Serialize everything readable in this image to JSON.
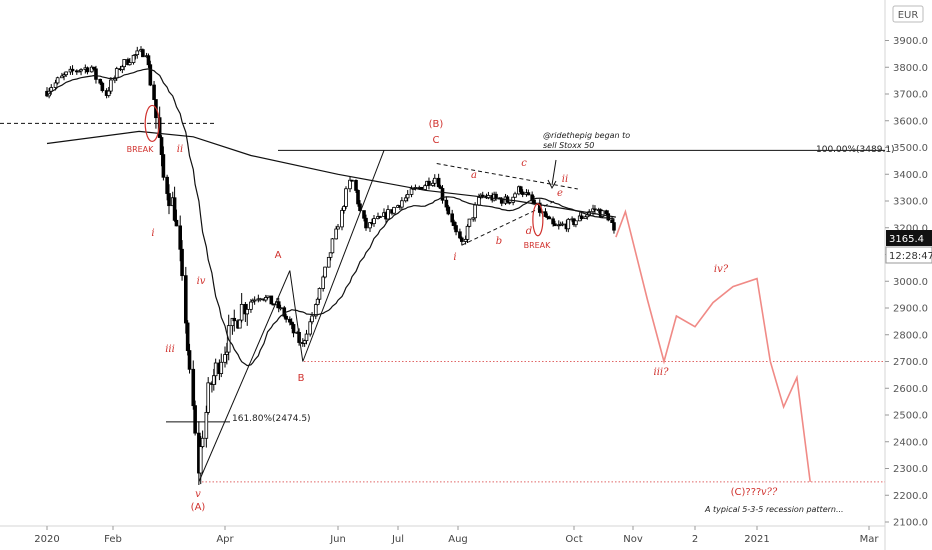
{
  "chart_data": {
    "type": "candlestick",
    "currency": "EUR",
    "x_ticks": [
      "2020",
      "Feb",
      "Apr",
      "Jun",
      "Jul",
      "Aug",
      "Oct",
      "Nov",
      "2",
      "2021",
      "Mar"
    ],
    "y_ticks": [
      "3900.0",
      "3800.0",
      "3700.0",
      "3600.0",
      "3500.0",
      "3400.0",
      "3300.0",
      "3200.0",
      "3100.0",
      "3000.0",
      "2900.0",
      "2800.0",
      "2700.0",
      "2600.0",
      "2500.0",
      "2400.0",
      "2300.0",
      "2200.0",
      "2100.0"
    ],
    "ylim": [
      2070,
      4000
    ],
    "last_price": "3165.4",
    "countdown": "12:28:47",
    "fib_upper_label": "100.00%(3489.1)",
    "fib_upper_value": 3489.1,
    "fib_lower_label": "161.80%(2474.5)",
    "fib_lower_value": 2474.5,
    "support_level": 2700,
    "target_level": 2250,
    "breakdown_level": 3590,
    "price_path": [
      [
        "2020-01-01",
        3710
      ],
      [
        "2020-01-08",
        3760
      ],
      [
        "2020-01-15",
        3790
      ],
      [
        "2020-01-22",
        3800
      ],
      [
        "2020-01-29",
        3700
      ],
      [
        "2020-02-05",
        3800
      ],
      [
        "2020-02-12",
        3840
      ],
      [
        "2020-02-19",
        3860
      ],
      [
        "2020-02-24",
        3650
      ],
      [
        "2020-02-28",
        3400
      ],
      [
        "2020-03-06",
        3250
      ],
      [
        "2020-03-10",
        2950
      ],
      [
        "2020-03-13",
        2700
      ],
      [
        "2020-03-18",
        2300
      ],
      [
        "2020-03-24",
        2600
      ],
      [
        "2020-04-01",
        2750
      ],
      [
        "2020-04-10",
        2900
      ],
      [
        "2020-04-20",
        2950
      ],
      [
        "2020-05-01",
        2900
      ],
      [
        "2020-05-13",
        2760
      ],
      [
        "2020-05-20",
        2900
      ],
      [
        "2020-06-01",
        3200
      ],
      [
        "2020-06-08",
        3390
      ],
      [
        "2020-06-15",
        3200
      ],
      [
        "2020-06-26",
        3250
      ],
      [
        "2020-07-08",
        3330
      ],
      [
        "2020-07-21",
        3390
      ],
      [
        "2020-08-03",
        3130
      ],
      [
        "2020-08-13",
        3320
      ],
      [
        "2020-08-28",
        3300
      ],
      [
        "2020-09-03",
        3350
      ],
      [
        "2020-09-10",
        3290
      ],
      [
        "2020-09-21",
        3200
      ],
      [
        "2020-10-01",
        3220
      ],
      [
        "2020-10-12",
        3270
      ],
      [
        "2020-10-20",
        3240
      ],
      [
        "2020-10-23",
        3165
      ]
    ],
    "projection_path": [
      [
        "2020-10-23",
        3165
      ],
      [
        "2020-10-28",
        3260
      ],
      [
        "2020-11-08",
        2930
      ],
      [
        "2020-11-16",
        2700
      ],
      [
        "2020-11-22",
        2870
      ],
      [
        "2020-12-01",
        2830
      ],
      [
        "2020-12-10",
        2920
      ],
      [
        "2020-12-20",
        2980
      ],
      [
        "2021-01-01",
        3010
      ],
      [
        "2021-01-08",
        2700
      ],
      [
        "2021-01-15",
        2530
      ],
      [
        "2021-01-22",
        2640
      ],
      [
        "2021-01-29",
        2250
      ]
    ],
    "wave_labels": [
      {
        "text": "BREAK"
      },
      {
        "text": "ii"
      },
      {
        "text": "i"
      },
      {
        "text": "iii"
      },
      {
        "text": "iv"
      },
      {
        "text": "v"
      },
      {
        "text": "(A)"
      },
      {
        "text": "A"
      },
      {
        "text": "B"
      },
      {
        "text": "(B)"
      },
      {
        "text": "C"
      },
      {
        "text": "a"
      },
      {
        "text": "b"
      },
      {
        "text": "c"
      },
      {
        "text": "d"
      },
      {
        "text": "e"
      },
      {
        "text": "i"
      },
      {
        "text": "ii"
      },
      {
        "text": "BREAK"
      },
      {
        "text": "iii?"
      },
      {
        "text": "iv?"
      },
      {
        "text": "(C)???"
      },
      {
        "text": "v??"
      }
    ],
    "annotations": {
      "sell_note_line1": "@ridethepig began to",
      "sell_note_line2": "sell Stoxx 50",
      "footer_note": "A typical 5-3-5 recession pattern..."
    },
    "colors": {
      "up_body": "#ffffff",
      "down_body": "#000000",
      "label_red": "#d0312d",
      "projection": "#f08a86",
      "last_price_tag": "#111111"
    }
  }
}
